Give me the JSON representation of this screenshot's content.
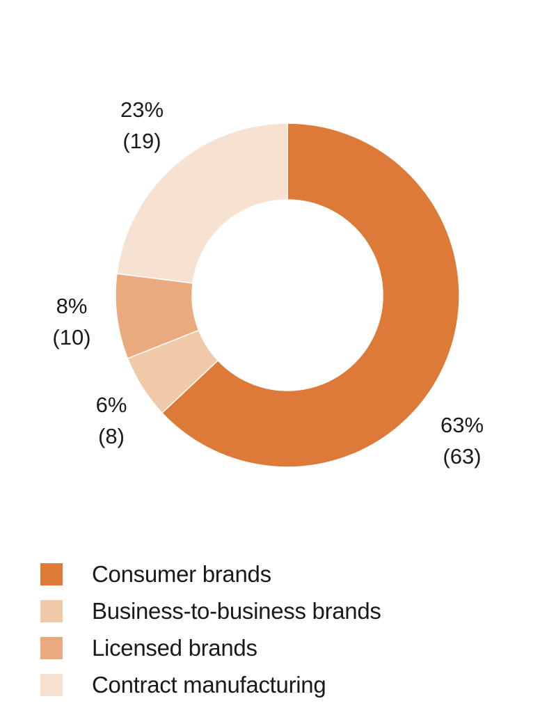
{
  "chart_data": {
    "type": "pie",
    "style": "donut",
    "categories": [
      "Consumer brands",
      "Business-to-business brands",
      "Licensed brands",
      "Contract manufacturing"
    ],
    "values": [
      63,
      6,
      8,
      23
    ],
    "prior_values": [
      63,
      8,
      10,
      19
    ],
    "labels": [
      {
        "percent": "63%",
        "prior": "(63)"
      },
      {
        "percent": "6%",
        "prior": "(8)"
      },
      {
        "percent": "8%",
        "prior": "(10)"
      },
      {
        "percent": "23%",
        "prior": "(19)"
      }
    ],
    "colors": [
      "#dd7a38",
      "#f0c9a8",
      "#e9aa7d",
      "#f7e2d2"
    ],
    "start": "top",
    "direction": "clockwise",
    "legend_position": "bottom"
  },
  "legend": {
    "items": [
      {
        "label": "Consumer brands",
        "color": "#dd7a38"
      },
      {
        "label": "Business-to-business brands",
        "color": "#f0c9a8"
      },
      {
        "label": "Licensed brands",
        "color": "#e9aa7d"
      },
      {
        "label": "Contract manufacturing",
        "color": "#f7e2d2"
      }
    ]
  }
}
